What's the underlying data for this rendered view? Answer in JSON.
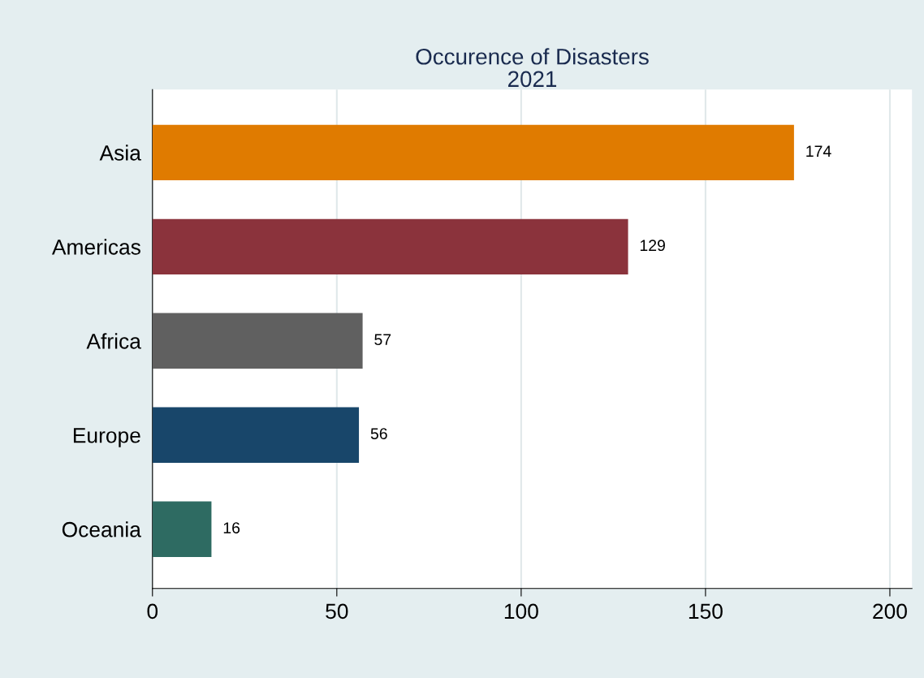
{
  "chart_data": {
    "type": "bar",
    "orientation": "horizontal",
    "title": "Occurence of Disasters",
    "subtitle": "2021",
    "categories": [
      "Asia",
      "Americas",
      "Africa",
      "Europe",
      "Oceania"
    ],
    "values": [
      174,
      129,
      57,
      56,
      16
    ],
    "colors": [
      "#e07b00",
      "#8b333c",
      "#606060",
      "#18466a",
      "#2e6b62"
    ],
    "xlim": [
      0,
      206
    ],
    "xticks": [
      0,
      50,
      100,
      150,
      200
    ],
    "grid": "x",
    "data_labels": true,
    "legend": false
  }
}
